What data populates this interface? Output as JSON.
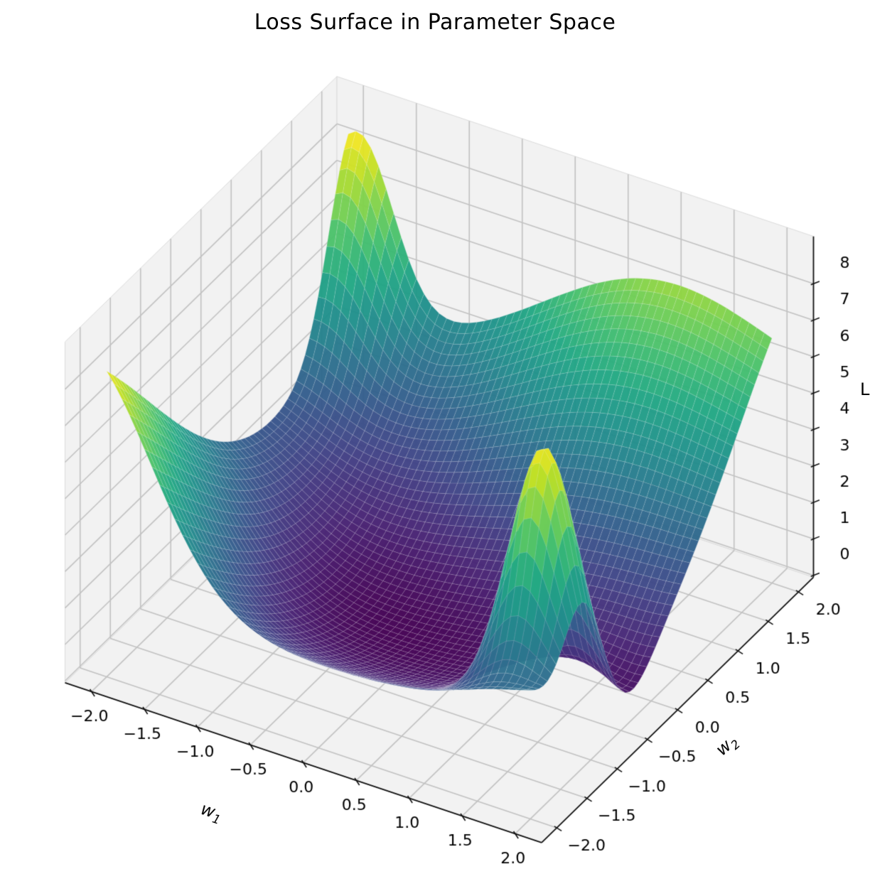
{
  "title": "Loss Surface in Parameter Space",
  "axes": {
    "x": {
      "label_base": "w",
      "label_sub": "1",
      "tick_labels": [
        "−2.0",
        "−1.5",
        "−1.0",
        "−0.5",
        "0.0",
        "0.5",
        "1.0",
        "1.5",
        "2.0"
      ],
      "tick_values": [
        -2,
        -1.5,
        -1,
        -0.5,
        0,
        0.5,
        1,
        1.5,
        2
      ]
    },
    "y": {
      "label_base": "w",
      "label_sub": "2",
      "tick_labels": [
        "−2.0",
        "−1.5",
        "−1.0",
        "−0.5",
        "0.0",
        "0.5",
        "1.0",
        "1.5",
        "2.0"
      ],
      "tick_values": [
        -2,
        -1.5,
        -1,
        -0.5,
        0,
        0.5,
        1,
        1.5,
        2
      ]
    },
    "z": {
      "label": "L",
      "tick_labels": [
        "0",
        "1",
        "2",
        "3",
        "4",
        "5",
        "6",
        "7",
        "8"
      ],
      "tick_values": [
        0,
        1,
        2,
        3,
        4,
        5,
        6,
        7,
        8
      ]
    }
  },
  "chart_data": {
    "type": "surface",
    "title": "Loss Surface in Parameter Space",
    "xlabel": "w_1",
    "ylabel": "w_2",
    "zlabel": "L",
    "x_range": [
      -2,
      2
    ],
    "y_range": [
      -2,
      2
    ],
    "z_axis_range": [
      0,
      8
    ],
    "grid_n": 56,
    "view": {
      "elev": 30,
      "azim": -60,
      "projection": "orthographic"
    },
    "colormap": "viridis",
    "colormap_stops": [
      [
        0.0,
        "#440154"
      ],
      [
        0.1,
        "#482475"
      ],
      [
        0.2,
        "#414487"
      ],
      [
        0.3,
        "#355f8d"
      ],
      [
        0.4,
        "#2a788e"
      ],
      [
        0.5,
        "#21918c"
      ],
      [
        0.6,
        "#22a884"
      ],
      [
        0.7,
        "#44bf70"
      ],
      [
        0.8,
        "#7ad151"
      ],
      [
        0.9,
        "#bddf26"
      ],
      [
        1.0,
        "#fde725"
      ]
    ],
    "surface_function": {
      "description": "L(w1,w2) = const + ax*w1^2 + ay*w2^2 + sum of gaussian bumps amp*exp(-((w1-cx)^2/sx + (w2-cy)^2/sy)); approximation of pictured loss landscape",
      "base": {
        "const": 0.03,
        "x2": 0.3,
        "y2": 0.55
      },
      "bumps": [
        {
          "name": "back-left sharp peak",
          "amp": 4.7,
          "cx": -1.9,
          "sx": 0.22,
          "cy": 2.05,
          "sy": 0.3
        },
        {
          "name": "back-right broad ridge",
          "amp": 4.8,
          "cx": 0.9,
          "sx": 3.2,
          "cy": 2.2,
          "sy": 2.6
        },
        {
          "name": "front sharp peak",
          "amp": 7.0,
          "cx": 1.62,
          "sx": 0.16,
          "cy": -1.1,
          "sy": 0.2
        },
        {
          "name": "left corner wall",
          "amp": 5.2,
          "cx": -2.2,
          "sx": 0.8,
          "cy": -2.2,
          "sy": 5.0
        },
        {
          "name": "right notch dip",
          "amp": -1.0,
          "cx": 2.05,
          "sx": 0.3,
          "cy": -0.45,
          "sy": 0.4
        }
      ]
    },
    "landmark_points": [
      {
        "w1": -1.9,
        "w2": 2.0,
        "L": 8.5,
        "feature": "tallest sharp peak at back-left"
      },
      {
        "w1": -2.0,
        "w2": -2.0,
        "L": 7.9,
        "feature": "raised left-corner wall crest"
      },
      {
        "w1": 1.62,
        "w2": -1.1,
        "L": 8.4,
        "feature": "sharp interior peak front-right"
      },
      {
        "w1": 1.0,
        "w2": 2.0,
        "L": 7.1,
        "feature": "broad ridge along back-right"
      },
      {
        "w1": 2.0,
        "w2": 2.0,
        "L": 6.9,
        "feature": "right corner hump"
      },
      {
        "w1": -0.6,
        "w2": 2.0,
        "L": 4.6,
        "feature": "saddle dip on back edge"
      },
      {
        "w1": 0.2,
        "w2": -0.4,
        "L": 0.4,
        "feature": "global minimum basin (purple)"
      },
      {
        "w1": 2.0,
        "w2": -0.45,
        "L": 1.1,
        "feature": "low notch on right edge"
      },
      {
        "w1": 2.0,
        "w2": -2.0,
        "L": 3.4,
        "feature": "front corner"
      }
    ]
  },
  "colors": {
    "background": "#ffffff",
    "pane": "#f2f2f2",
    "pane_edge": "#dcdcdc",
    "grid_line": "#c2c2c2",
    "axis_line": "#111111",
    "tick_text": "#000000",
    "surface_mesh_line": "rgba(255,255,255,0.28)"
  }
}
